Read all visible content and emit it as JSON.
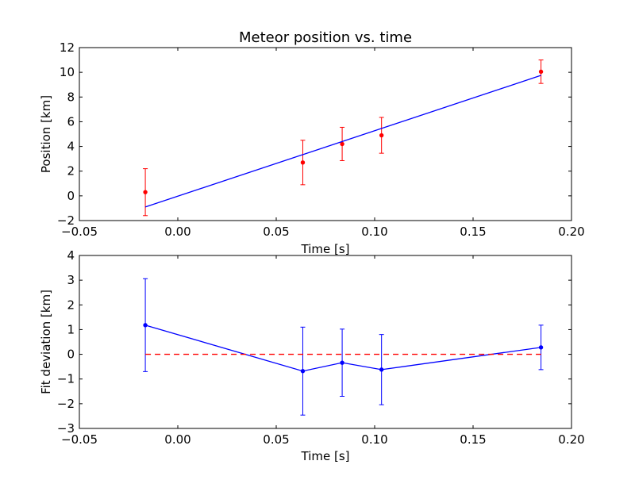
{
  "chart_data": [
    {
      "type": "scatter",
      "title": "Meteor position vs. time",
      "xlabel": "Time [s]",
      "ylabel": "Position [km]",
      "xlim": [
        -0.05,
        0.2
      ],
      "ylim": [
        -2,
        12
      ],
      "xticks": [
        -0.05,
        0.0,
        0.05,
        0.1,
        0.15,
        0.2
      ],
      "xtick_labels": [
        "−0.05",
        "0.00",
        "0.05",
        "0.10",
        "0.15",
        "0.20"
      ],
      "yticks": [
        -2,
        0,
        2,
        4,
        6,
        8,
        10,
        12
      ],
      "ytick_labels": [
        "−2",
        "0",
        "2",
        "4",
        "6",
        "8",
        "10",
        "12"
      ],
      "grid": false,
      "series": [
        {
          "kind": "errorbar",
          "color": "#ff0000",
          "x": [
            -0.0165,
            0.0635,
            0.0835,
            0.1035,
            0.1845
          ],
          "y": [
            0.3,
            2.7,
            4.2,
            4.9,
            10.05
          ],
          "yerr": [
            1.9,
            1.8,
            1.35,
            1.45,
            0.95
          ]
        },
        {
          "kind": "line",
          "color": "#0000ff",
          "x": [
            -0.0165,
            0.1845
          ],
          "y": [
            -0.9,
            9.75
          ]
        }
      ]
    },
    {
      "type": "scatter",
      "title": "",
      "xlabel": "Time [s]",
      "ylabel": "Fit deviation [km]",
      "xlim": [
        -0.05,
        0.2
      ],
      "ylim": [
        -3,
        4
      ],
      "xticks": [
        -0.05,
        0.0,
        0.05,
        0.1,
        0.15,
        0.2
      ],
      "xtick_labels": [
        "−0.05",
        "0.00",
        "0.05",
        "0.10",
        "0.15",
        "0.20"
      ],
      "yticks": [
        -3,
        -2,
        -1,
        0,
        1,
        2,
        3,
        4
      ],
      "ytick_labels": [
        "−3",
        "−2",
        "−1",
        "0",
        "1",
        "2",
        "3",
        "4"
      ],
      "grid": false,
      "series": [
        {
          "kind": "errorbar_line",
          "color": "#0000ff",
          "x": [
            -0.0165,
            0.0635,
            0.0835,
            0.1035,
            0.1845
          ],
          "y": [
            1.18,
            -0.68,
            -0.34,
            -0.62,
            0.28
          ],
          "yerr": [
            1.88,
            1.78,
            1.36,
            1.42,
            0.9
          ]
        },
        {
          "kind": "dashed_line",
          "color": "#ff0000",
          "x": [
            -0.0165,
            0.1845
          ],
          "y": [
            0,
            0
          ]
        }
      ]
    }
  ]
}
